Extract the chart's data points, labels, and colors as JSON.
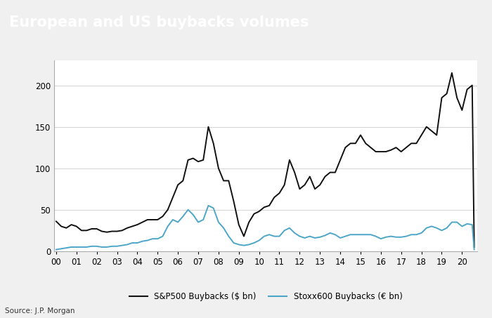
{
  "title": "European and US buybacks volumes",
  "title_bg_color": "#6092c8",
  "title_text_color": "#ffffff",
  "source_text": "Source: J.P. Morgan",
  "sp500_label": "S&P500 Buybacks ($ bn)",
  "stoxx_label": "Stoxx600 Buybacks (€ bn)",
  "sp500_color": "#111111",
  "stoxx_color": "#4da6c8",
  "bg_color": "#f0f0f0",
  "plot_bg_color": "#ffffff",
  "x_labels": [
    "00",
    "01",
    "02",
    "03",
    "04",
    "05",
    "06",
    "07",
    "08",
    "09",
    "10",
    "11",
    "12",
    "13",
    "14",
    "15",
    "16",
    "17",
    "18",
    "19",
    "20"
  ],
  "ylim": [
    0,
    230
  ],
  "yticks": [
    0,
    50,
    100,
    150,
    200
  ],
  "sp500_data": {
    "x": [
      2000.0,
      2000.25,
      2000.5,
      2000.75,
      2001.0,
      2001.25,
      2001.5,
      2001.75,
      2002.0,
      2002.25,
      2002.5,
      2002.75,
      2003.0,
      2003.25,
      2003.5,
      2003.75,
      2004.0,
      2004.25,
      2004.5,
      2004.75,
      2005.0,
      2005.25,
      2005.5,
      2005.75,
      2006.0,
      2006.25,
      2006.5,
      2006.75,
      2007.0,
      2007.25,
      2007.5,
      2007.75,
      2008.0,
      2008.25,
      2008.5,
      2008.75,
      2009.0,
      2009.25,
      2009.5,
      2009.75,
      2010.0,
      2010.25,
      2010.5,
      2010.75,
      2011.0,
      2011.25,
      2011.5,
      2011.75,
      2012.0,
      2012.25,
      2012.5,
      2012.75,
      2013.0,
      2013.25,
      2013.5,
      2013.75,
      2014.0,
      2014.25,
      2014.5,
      2014.75,
      2015.0,
      2015.25,
      2015.5,
      2015.75,
      2016.0,
      2016.25,
      2016.5,
      2016.75,
      2017.0,
      2017.25,
      2017.5,
      2017.75,
      2018.0,
      2018.25,
      2018.5,
      2018.75,
      2019.0,
      2019.25,
      2019.5,
      2019.75,
      2020.0,
      2020.25,
      2020.5,
      2020.6
    ],
    "y": [
      36,
      30,
      28,
      32,
      30,
      25,
      25,
      27,
      27,
      24,
      23,
      24,
      24,
      25,
      28,
      30,
      32,
      35,
      38,
      38,
      38,
      42,
      50,
      65,
      80,
      85,
      110,
      112,
      108,
      110,
      150,
      130,
      100,
      85,
      85,
      60,
      32,
      18,
      35,
      45,
      48,
      53,
      55,
      65,
      70,
      80,
      110,
      95,
      75,
      80,
      90,
      75,
      80,
      90,
      95,
      95,
      110,
      125,
      130,
      130,
      140,
      130,
      125,
      120,
      120,
      120,
      122,
      125,
      120,
      125,
      130,
      130,
      140,
      150,
      145,
      140,
      185,
      190,
      215,
      185,
      170,
      195,
      200,
      5
    ]
  },
  "stoxx_data": {
    "x": [
      2000.0,
      2000.25,
      2000.5,
      2000.75,
      2001.0,
      2001.25,
      2001.5,
      2001.75,
      2002.0,
      2002.25,
      2002.5,
      2002.75,
      2003.0,
      2003.25,
      2003.5,
      2003.75,
      2004.0,
      2004.25,
      2004.5,
      2004.75,
      2005.0,
      2005.25,
      2005.5,
      2005.75,
      2006.0,
      2006.25,
      2006.5,
      2006.75,
      2007.0,
      2007.25,
      2007.5,
      2007.75,
      2008.0,
      2008.25,
      2008.5,
      2008.75,
      2009.0,
      2009.25,
      2009.5,
      2009.75,
      2010.0,
      2010.25,
      2010.5,
      2010.75,
      2011.0,
      2011.25,
      2011.5,
      2011.75,
      2012.0,
      2012.25,
      2012.5,
      2012.75,
      2013.0,
      2013.25,
      2013.5,
      2013.75,
      2014.0,
      2014.25,
      2014.5,
      2014.75,
      2015.0,
      2015.25,
      2015.5,
      2015.75,
      2016.0,
      2016.25,
      2016.5,
      2016.75,
      2017.0,
      2017.25,
      2017.5,
      2017.75,
      2018.0,
      2018.25,
      2018.5,
      2018.75,
      2019.0,
      2019.25,
      2019.5,
      2019.75,
      2020.0,
      2020.25,
      2020.5,
      2020.6
    ],
    "y": [
      2,
      3,
      4,
      5,
      5,
      5,
      5,
      6,
      6,
      5,
      5,
      6,
      6,
      7,
      8,
      10,
      10,
      12,
      13,
      15,
      15,
      18,
      30,
      38,
      35,
      42,
      50,
      44,
      35,
      38,
      55,
      52,
      35,
      28,
      18,
      10,
      8,
      7,
      8,
      10,
      13,
      18,
      20,
      18,
      18,
      25,
      28,
      22,
      18,
      16,
      18,
      16,
      17,
      19,
      22,
      20,
      16,
      18,
      20,
      20,
      20,
      20,
      20,
      18,
      15,
      17,
      18,
      17,
      17,
      18,
      20,
      20,
      22,
      28,
      30,
      28,
      25,
      28,
      35,
      35,
      30,
      33,
      32,
      2
    ]
  }
}
